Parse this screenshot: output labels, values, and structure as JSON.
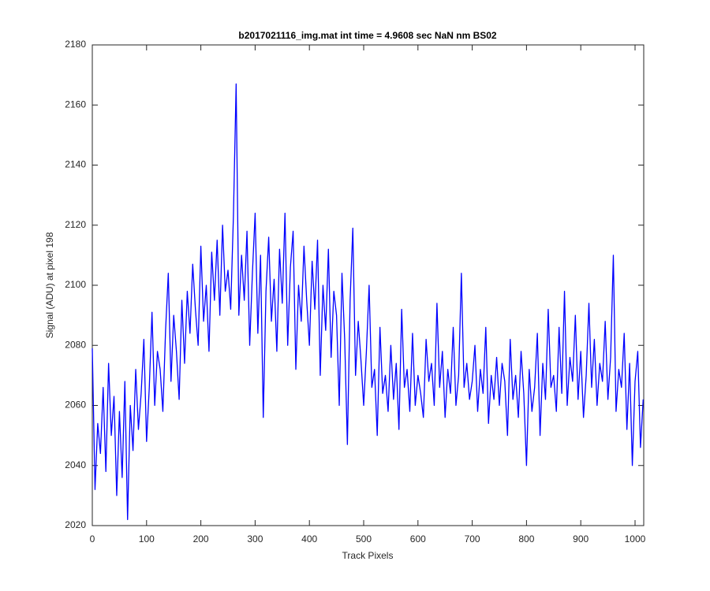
{
  "chart_data": {
    "type": "line",
    "title": "b2017021116_img.mat int time = 4.9608 sec  NaN nm BS02",
    "x_label": "Track Pixels",
    "y_label": "Signal (ADU) at pixel 198",
    "x": [
      0,
      5,
      10,
      15,
      20,
      25,
      30,
      35,
      40,
      45,
      50,
      55,
      60,
      65,
      70,
      75,
      80,
      85,
      90,
      95,
      100,
      105,
      110,
      115,
      120,
      125,
      130,
      135,
      140,
      145,
      150,
      155,
      160,
      165,
      170,
      175,
      180,
      185,
      190,
      195,
      200,
      205,
      210,
      215,
      220,
      225,
      230,
      235,
      240,
      245,
      250,
      255,
      260,
      265,
      270,
      275,
      280,
      285,
      290,
      295,
      300,
      305,
      310,
      315,
      320,
      325,
      330,
      335,
      340,
      345,
      350,
      355,
      360,
      365,
      370,
      375,
      380,
      385,
      390,
      395,
      400,
      405,
      410,
      415,
      420,
      425,
      430,
      435,
      440,
      445,
      450,
      455,
      460,
      465,
      470,
      475,
      480,
      485,
      490,
      495,
      500,
      505,
      510,
      515,
      520,
      525,
      530,
      535,
      540,
      545,
      550,
      555,
      560,
      565,
      570,
      575,
      580,
      585,
      590,
      595,
      600,
      605,
      610,
      615,
      620,
      625,
      630,
      635,
      640,
      645,
      650,
      655,
      660,
      665,
      670,
      675,
      680,
      685,
      690,
      695,
      700,
      705,
      710,
      715,
      720,
      725,
      730,
      735,
      740,
      745,
      750,
      755,
      760,
      765,
      770,
      775,
      780,
      785,
      790,
      795,
      800,
      805,
      810,
      815,
      820,
      825,
      830,
      835,
      840,
      845,
      850,
      855,
      860,
      865,
      870,
      875,
      880,
      885,
      890,
      895,
      900,
      905,
      910,
      915,
      920,
      925,
      930,
      935,
      940,
      945,
      950,
      955,
      960,
      965,
      970,
      975,
      980,
      985,
      990,
      995,
      1000,
      1005,
      1010,
      1015
    ],
    "series": [
      {
        "name": "signal",
        "color": "#0000ff",
        "values": [
          2079,
          2032,
          2054,
          2044,
          2066,
          2038,
          2074,
          2050,
          2063,
          2030,
          2058,
          2036,
          2068,
          2022,
          2060,
          2045,
          2072,
          2052,
          2064,
          2082,
          2048,
          2066,
          2091,
          2060,
          2078,
          2072,
          2058,
          2085,
          2104,
          2068,
          2090,
          2078,
          2062,
          2095,
          2074,
          2098,
          2084,
          2107,
          2092,
          2080,
          2113,
          2088,
          2100,
          2078,
          2111,
          2095,
          2115,
          2090,
          2120,
          2098,
          2105,
          2092,
          2123,
          2167,
          2090,
          2110,
          2095,
          2118,
          2080,
          2104,
          2124,
          2084,
          2110,
          2056,
          2098,
          2116,
          2088,
          2102,
          2078,
          2112,
          2094,
          2124,
          2080,
          2106,
          2118,
          2072,
          2100,
          2088,
          2113,
          2095,
          2080,
          2108,
          2092,
          2115,
          2070,
          2100,
          2085,
          2112,
          2076,
          2098,
          2090,
          2060,
          2104,
          2082,
          2047,
          2095,
          2119,
          2070,
          2088,
          2075,
          2060,
          2078,
          2100,
          2066,
          2072,
          2050,
          2086,
          2064,
          2070,
          2058,
          2080,
          2062,
          2074,
          2052,
          2092,
          2066,
          2072,
          2058,
          2084,
          2060,
          2070,
          2064,
          2056,
          2082,
          2068,
          2074,
          2060,
          2094,
          2066,
          2078,
          2056,
          2072,
          2064,
          2086,
          2060,
          2070,
          2104,
          2066,
          2074,
          2062,
          2068,
          2080,
          2058,
          2072,
          2064,
          2086,
          2054,
          2070,
          2062,
          2076,
          2060,
          2074,
          2068,
          2050,
          2082,
          2062,
          2070,
          2056,
          2078,
          2064,
          2040,
          2072,
          2058,
          2066,
          2084,
          2050,
          2074,
          2062,
          2092,
          2066,
          2070,
          2058,
          2086,
          2064,
          2098,
          2060,
          2076,
          2068,
          2090,
          2062,
          2078,
          2056,
          2070,
          2094,
          2066,
          2082,
          2060,
          2074,
          2068,
          2088,
          2062,
          2076,
          2110,
          2058,
          2072,
          2066,
          2084,
          2052,
          2074,
          2040,
          2068,
          2078,
          2046,
          2062
        ]
      }
    ],
    "xlim": [
      0,
      1016
    ],
    "xticks": [
      0,
      100,
      200,
      300,
      400,
      500,
      600,
      700,
      800,
      900,
      1000
    ],
    "ylim": [
      2020,
      2180
    ],
    "yticks": [
      2020,
      2040,
      2060,
      2080,
      2100,
      2120,
      2140,
      2160,
      2180
    ]
  }
}
